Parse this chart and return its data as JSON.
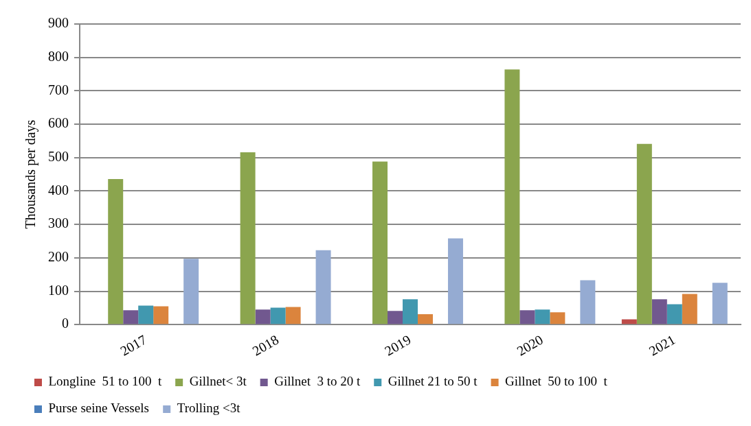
{
  "chart_data": {
    "type": "bar",
    "ylabel": "Thousands per days",
    "categories": [
      "2017",
      "2018",
      "2019",
      "2020",
      "2021"
    ],
    "series": [
      {
        "name": "Longline  51 to 100  t",
        "color": "#be4b48",
        "values": [
          0,
          0,
          0,
          0,
          16
        ]
      },
      {
        "name": "Gillnet< 3t",
        "color": "#8ba54e",
        "values": [
          436,
          516,
          488,
          764,
          541
        ]
      },
      {
        "name": "Gillnet  3 to 20 t",
        "color": "#71588f",
        "values": [
          43,
          45,
          41,
          43,
          76
        ]
      },
      {
        "name": "Gillnet 21 to 50 t",
        "color": "#4198af",
        "values": [
          57,
          51,
          76,
          45,
          61
        ]
      },
      {
        "name": "Gillnet  50 to 100  t",
        "color": "#db843d",
        "values": [
          55,
          53,
          31,
          37,
          92
        ]
      },
      {
        "name": "Purse seine Vessels",
        "color": "#4a7ebb",
        "values": [
          0,
          0,
          0,
          0,
          0
        ]
      },
      {
        "name": "Trolling <3t",
        "color": "#95abd2",
        "values": [
          197,
          223,
          258,
          133,
          125
        ]
      }
    ],
    "ylim": [
      0,
      900
    ],
    "yticks": [
      0,
      100,
      200,
      300,
      400,
      500,
      600,
      700,
      800,
      900
    ],
    "grid": "y",
    "legend": "bottom"
  }
}
